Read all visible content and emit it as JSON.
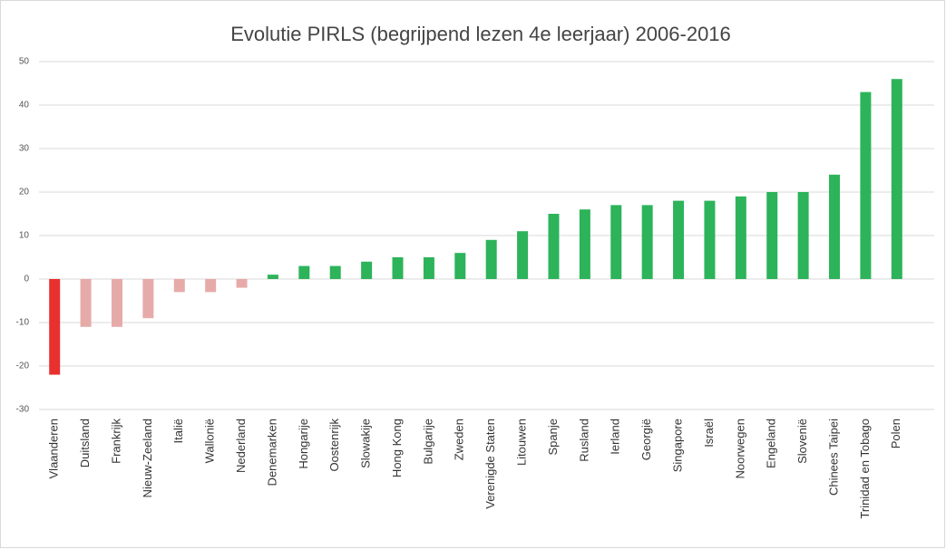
{
  "chart_data": {
    "type": "bar",
    "title": "Evolutie PIRLS (begrijpend lezen 4e leerjaar) 2006-2016",
    "categories": [
      "Vlaanderen",
      "Duitsland",
      "Frankrijk",
      "Nieuw-Zeeland",
      "Italië",
      "Wallonië",
      "Nederland",
      "Denemarken",
      "Hongarije",
      "Oostenrijk",
      "Slowakije",
      "Hong Kong",
      "Bulgarije",
      "Zweden",
      "Verenigde Staten",
      "Litouwen",
      "Spanje",
      "Rusland",
      "Ierland",
      "Georgië",
      "Singapore",
      "Israël",
      "Noorwegen",
      "Engeland",
      "Slovenië",
      "Chinees Taipei",
      "Trinidad en Tobago",
      "Polen"
    ],
    "values": [
      -22,
      -11,
      -11,
      -9,
      -3,
      -3,
      -2,
      1,
      3,
      3,
      4,
      5,
      5,
      6,
      9,
      11,
      15,
      16,
      17,
      17,
      18,
      18,
      19,
      20,
      20,
      24,
      43,
      46
    ],
    "colors": [
      "#e8302f",
      "#e6aba9",
      "#e6aba9",
      "#e6aba9",
      "#e6aba9",
      "#e6aba9",
      "#e6aba9",
      "#2db35a",
      "#2db35a",
      "#2db35a",
      "#2db35a",
      "#2db35a",
      "#2db35a",
      "#2db35a",
      "#2db35a",
      "#2db35a",
      "#2db35a",
      "#2db35a",
      "#2db35a",
      "#2db35a",
      "#2db35a",
      "#2db35a",
      "#2db35a",
      "#2db35a",
      "#2db35a",
      "#2db35a",
      "#2db35a",
      "#2db35a"
    ],
    "ylim": [
      -30,
      50
    ],
    "yticks": [
      -30,
      -20,
      -10,
      0,
      10,
      20,
      30,
      40,
      50
    ],
    "grid": true
  }
}
